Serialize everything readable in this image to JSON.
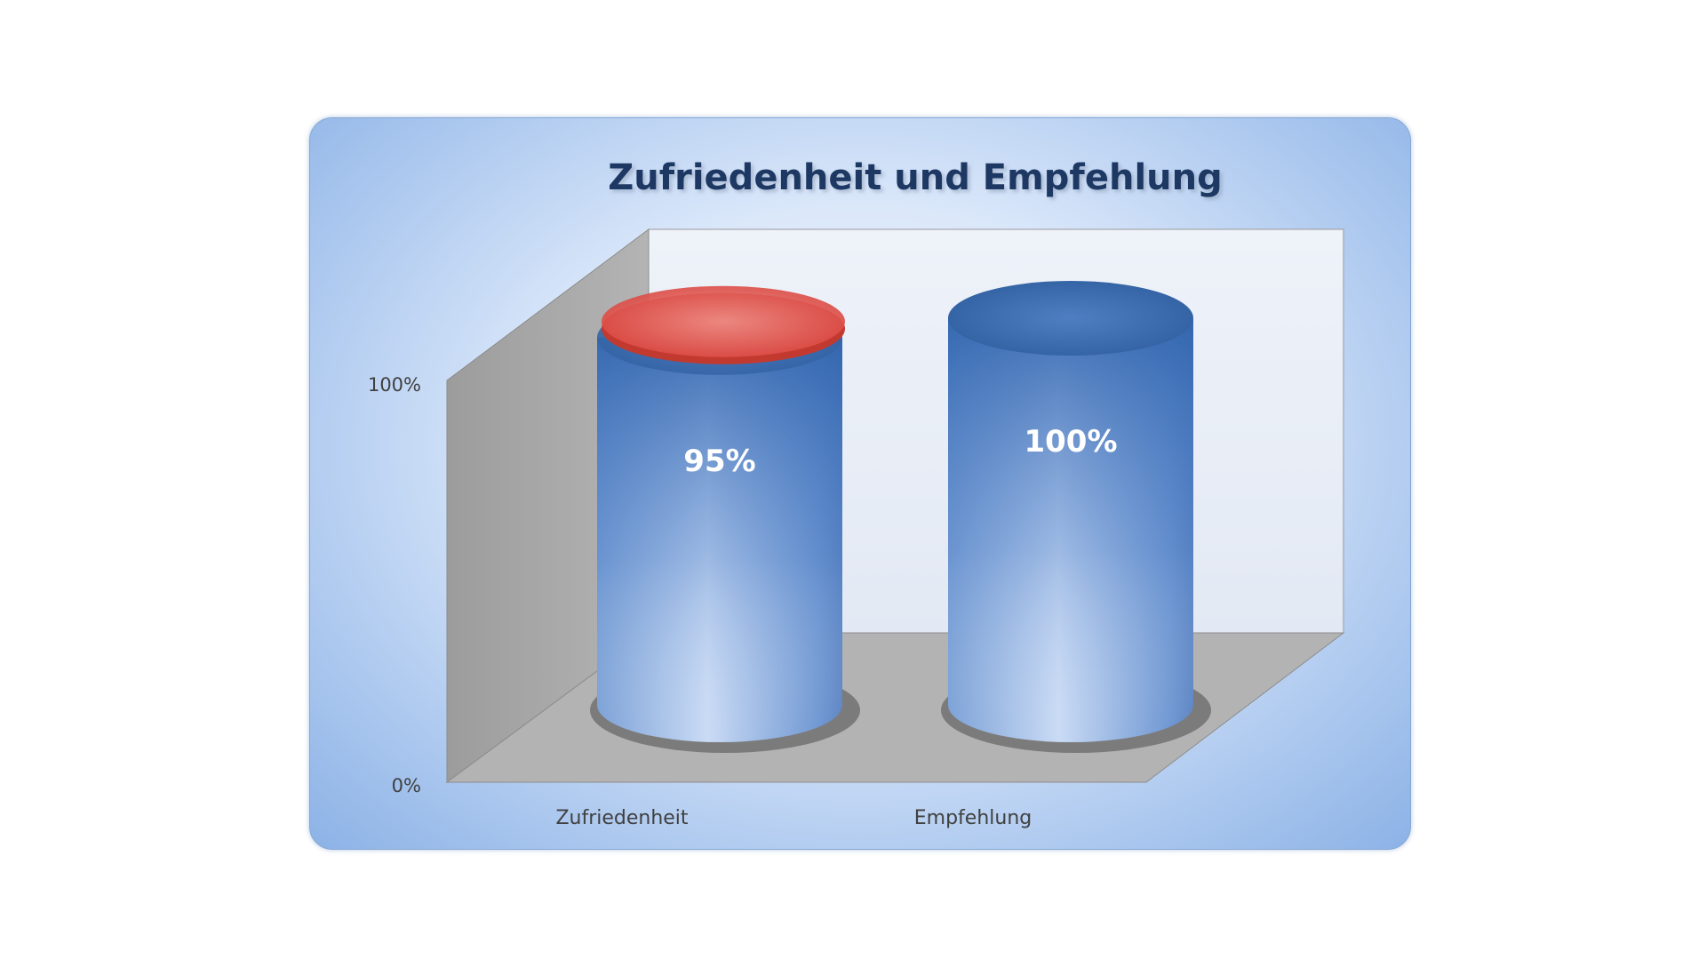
{
  "chart_data": {
    "type": "bar",
    "title": "Zufriedenheit und Empfehlung",
    "categories": [
      "Zufriedenheit",
      "Empfehlung"
    ],
    "values": [
      95,
      100
    ],
    "value_labels": [
      "95%",
      "100%"
    ],
    "y_ticks": [
      "0%",
      "100%"
    ],
    "ylim": [
      0,
      100
    ],
    "xlabel": "",
    "ylabel": "",
    "grid": false,
    "legend": "none",
    "style": "3d-cylinder",
    "colors": {
      "bar": "#4f80c4",
      "bar_top": "#3f6fb3",
      "highlight_top": "#e0504a",
      "wall": "#a9a9a9",
      "back_wall": "#e8edf6",
      "title": "#1f3864",
      "value_label": "#ffffff",
      "axis_text": "#404040"
    }
  }
}
